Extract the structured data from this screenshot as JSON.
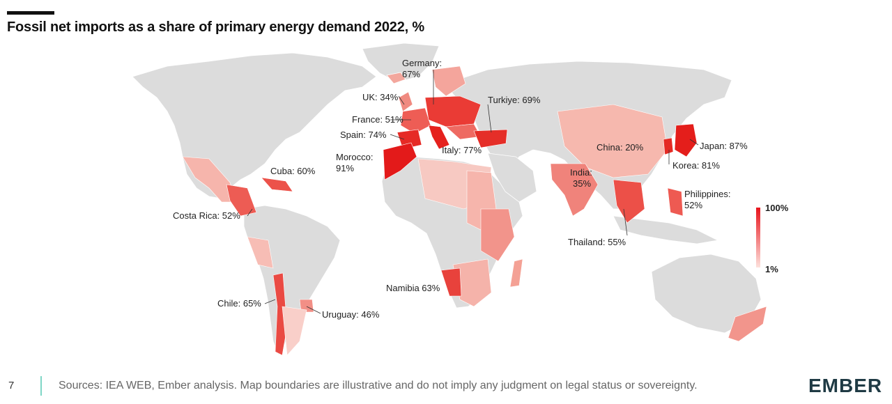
{
  "title": "Fossil net imports as a share of primary energy demand 2022, %",
  "legend": {
    "max_label": "100%",
    "min_label": "1%",
    "color_high": "#e8141c",
    "color_low": "#fde1dc"
  },
  "colors": {
    "no_data": "#dcdcdc",
    "ocean": "#ffffff",
    "accent": "#e8141c",
    "rule": "#111111",
    "divider": "#7fd6c6",
    "brand": "#1f3a44"
  },
  "labels": [
    {
      "id": "germany",
      "lines": [
        "Germany:",
        "67%"
      ],
      "value": 67
    },
    {
      "id": "uk",
      "lines": [
        "UK: 34%"
      ],
      "value": 34
    },
    {
      "id": "turkiye",
      "lines": [
        "Turkiye: 69%"
      ],
      "value": 69
    },
    {
      "id": "france",
      "lines": [
        "France: 51%"
      ],
      "value": 51
    },
    {
      "id": "spain",
      "lines": [
        "Spain: 74%"
      ],
      "value": 74
    },
    {
      "id": "morocco",
      "lines": [
        "Morocco:",
        "91%"
      ],
      "value": 91
    },
    {
      "id": "italy",
      "lines": [
        "Italy: 77%"
      ],
      "value": 77
    },
    {
      "id": "cuba",
      "lines": [
        "Cuba: 60%"
      ],
      "value": 60
    },
    {
      "id": "costa_rica",
      "lines": [
        "Costa Rica: 52%"
      ],
      "value": 52
    },
    {
      "id": "china",
      "lines": [
        "China: 20%"
      ],
      "value": 20
    },
    {
      "id": "india",
      "lines": [
        "India:",
        "35%"
      ],
      "value": 35
    },
    {
      "id": "japan",
      "lines": [
        "Japan: 87%"
      ],
      "value": 87
    },
    {
      "id": "korea",
      "lines": [
        "Korea: 81%"
      ],
      "value": 81
    },
    {
      "id": "philippines",
      "lines": [
        "Philippines:",
        "52%"
      ],
      "value": 52
    },
    {
      "id": "thailand",
      "lines": [
        "Thailand: 55%"
      ],
      "value": 55
    },
    {
      "id": "namibia",
      "lines": [
        "Namibia 63%"
      ],
      "value": 63
    },
    {
      "id": "chile",
      "lines": [
        "Chile: 65%"
      ],
      "value": 65
    },
    {
      "id": "uruguay",
      "lines": [
        "Uruguay: 46%"
      ],
      "value": 46
    }
  ],
  "footer": {
    "page_number": "7",
    "sources": "Sources: IEA WEB, Ember analysis. Map boundaries are illustrative and do not imply any judgment on legal status or sovereignty.",
    "brand": "EMBER"
  }
}
